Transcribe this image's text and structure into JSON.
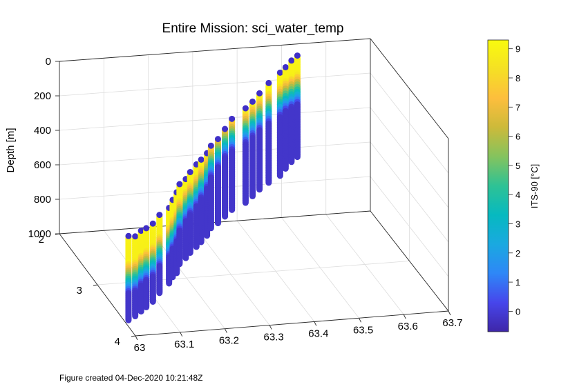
{
  "chart_data": {
    "type": "scatter",
    "title": "Entire Mission: sci_water_temp",
    "zlabel": "Depth [m]",
    "colorbar_label": "ITS-90 [°C]",
    "xlim": [
      63,
      63.7
    ],
    "ylim": [
      2,
      4
    ],
    "zlim": [
      0,
      1000
    ],
    "clim": [
      -0.7,
      9.3
    ],
    "grid": true,
    "x_ticks": [
      "63",
      "63.1",
      "63.2",
      "63.3",
      "63.4",
      "63.5",
      "63.6",
      "63.7"
    ],
    "y_ticks": [
      "2",
      "3",
      "4"
    ],
    "z_ticks": [
      "0",
      "200",
      "400",
      "600",
      "800",
      "1000"
    ],
    "colorbar_ticks": [
      "0",
      "1",
      "2",
      "3",
      "4",
      "5",
      "6",
      "7",
      "8",
      "9"
    ],
    "colormap": [
      "#3e26a8",
      "#4746eb",
      "#2e87f7",
      "#1aa9e0",
      "#06b9c0",
      "#2ec295",
      "#84c35e",
      "#ccba3a",
      "#fdbe3d",
      "#f5e024",
      "#f9fb0e"
    ],
    "profiles": [
      {
        "x": 63.01,
        "y": 3.7,
        "z_bottom": 1000,
        "surface": 520,
        "thermocline": 790
      },
      {
        "x": 63.025,
        "y": 3.7,
        "z_bottom": 980,
        "surface": 525,
        "thermocline": 780
      },
      {
        "x": 63.045,
        "y": 3.62,
        "z_bottom": 980,
        "surface": 520,
        "thermocline": 770
      },
      {
        "x": 63.06,
        "y": 3.58,
        "z_bottom": 970,
        "surface": 520,
        "thermocline": 760
      },
      {
        "x": 63.08,
        "y": 3.52,
        "z_bottom": 960,
        "surface": 515,
        "thermocline": 755
      },
      {
        "x": 63.105,
        "y": 3.4,
        "z_bottom": 950,
        "surface": 505,
        "thermocline": 740
      },
      {
        "x": 63.135,
        "y": 3.3,
        "z_bottom": 930,
        "surface": 500,
        "thermocline": 720
      },
      {
        "x": 63.15,
        "y": 3.22,
        "z_bottom": 920,
        "surface": 480,
        "thermocline": 700
      },
      {
        "x": 63.165,
        "y": 3.15,
        "z_bottom": 920,
        "surface": 460,
        "thermocline": 680
      },
      {
        "x": 63.18,
        "y": 3.05,
        "z_bottom": 900,
        "surface": 445,
        "thermocline": 650
      },
      {
        "x": 63.2,
        "y": 2.98,
        "z_bottom": 890,
        "surface": 440,
        "thermocline": 620
      },
      {
        "x": 63.215,
        "y": 2.92,
        "z_bottom": 880,
        "surface": 420,
        "thermocline": 600
      },
      {
        "x": 63.235,
        "y": 2.85,
        "z_bottom": 870,
        "surface": 400,
        "thermocline": 580
      },
      {
        "x": 63.25,
        "y": 2.8,
        "z_bottom": 860,
        "surface": 390,
        "thermocline": 550
      },
      {
        "x": 63.27,
        "y": 2.72,
        "z_bottom": 850,
        "surface": 380,
        "thermocline": 520
      },
      {
        "x": 63.285,
        "y": 2.65,
        "z_bottom": 830,
        "surface": 360,
        "thermocline": 480
      },
      {
        "x": 63.305,
        "y": 2.6,
        "z_bottom": 820,
        "surface": 340,
        "thermocline": 440
      },
      {
        "x": 63.325,
        "y": 2.55,
        "z_bottom": 800,
        "surface": 300,
        "thermocline": 400
      },
      {
        "x": 63.345,
        "y": 2.5,
        "z_bottom": 780,
        "surface": 260,
        "thermocline": 380
      },
      {
        "x": 63.38,
        "y": 2.45,
        "z_bottom": 760,
        "surface": 220,
        "thermocline": 360
      },
      {
        "x": 63.4,
        "y": 2.4,
        "z_bottom": 740,
        "surface": 200,
        "thermocline": 340
      },
      {
        "x": 63.42,
        "y": 2.35,
        "z_bottom": 720,
        "surface": 170,
        "thermocline": 320
      },
      {
        "x": 63.445,
        "y": 2.3,
        "z_bottom": 700,
        "surface": 130,
        "thermocline": 300
      },
      {
        "x": 63.475,
        "y": 2.25,
        "z_bottom": 680,
        "surface": 90,
        "thermocline": 280
      },
      {
        "x": 63.49,
        "y": 2.22,
        "z_bottom": 650,
        "surface": 70,
        "thermocline": 260
      },
      {
        "x": 63.505,
        "y": 2.2,
        "z_bottom": 620,
        "surface": 40,
        "thermocline": 250
      },
      {
        "x": 63.52,
        "y": 2.18,
        "z_bottom": 600,
        "surface": 20,
        "thermocline": 240
      }
    ]
  },
  "footer": "Figure created 04-Dec-2020 10:21:48Z"
}
